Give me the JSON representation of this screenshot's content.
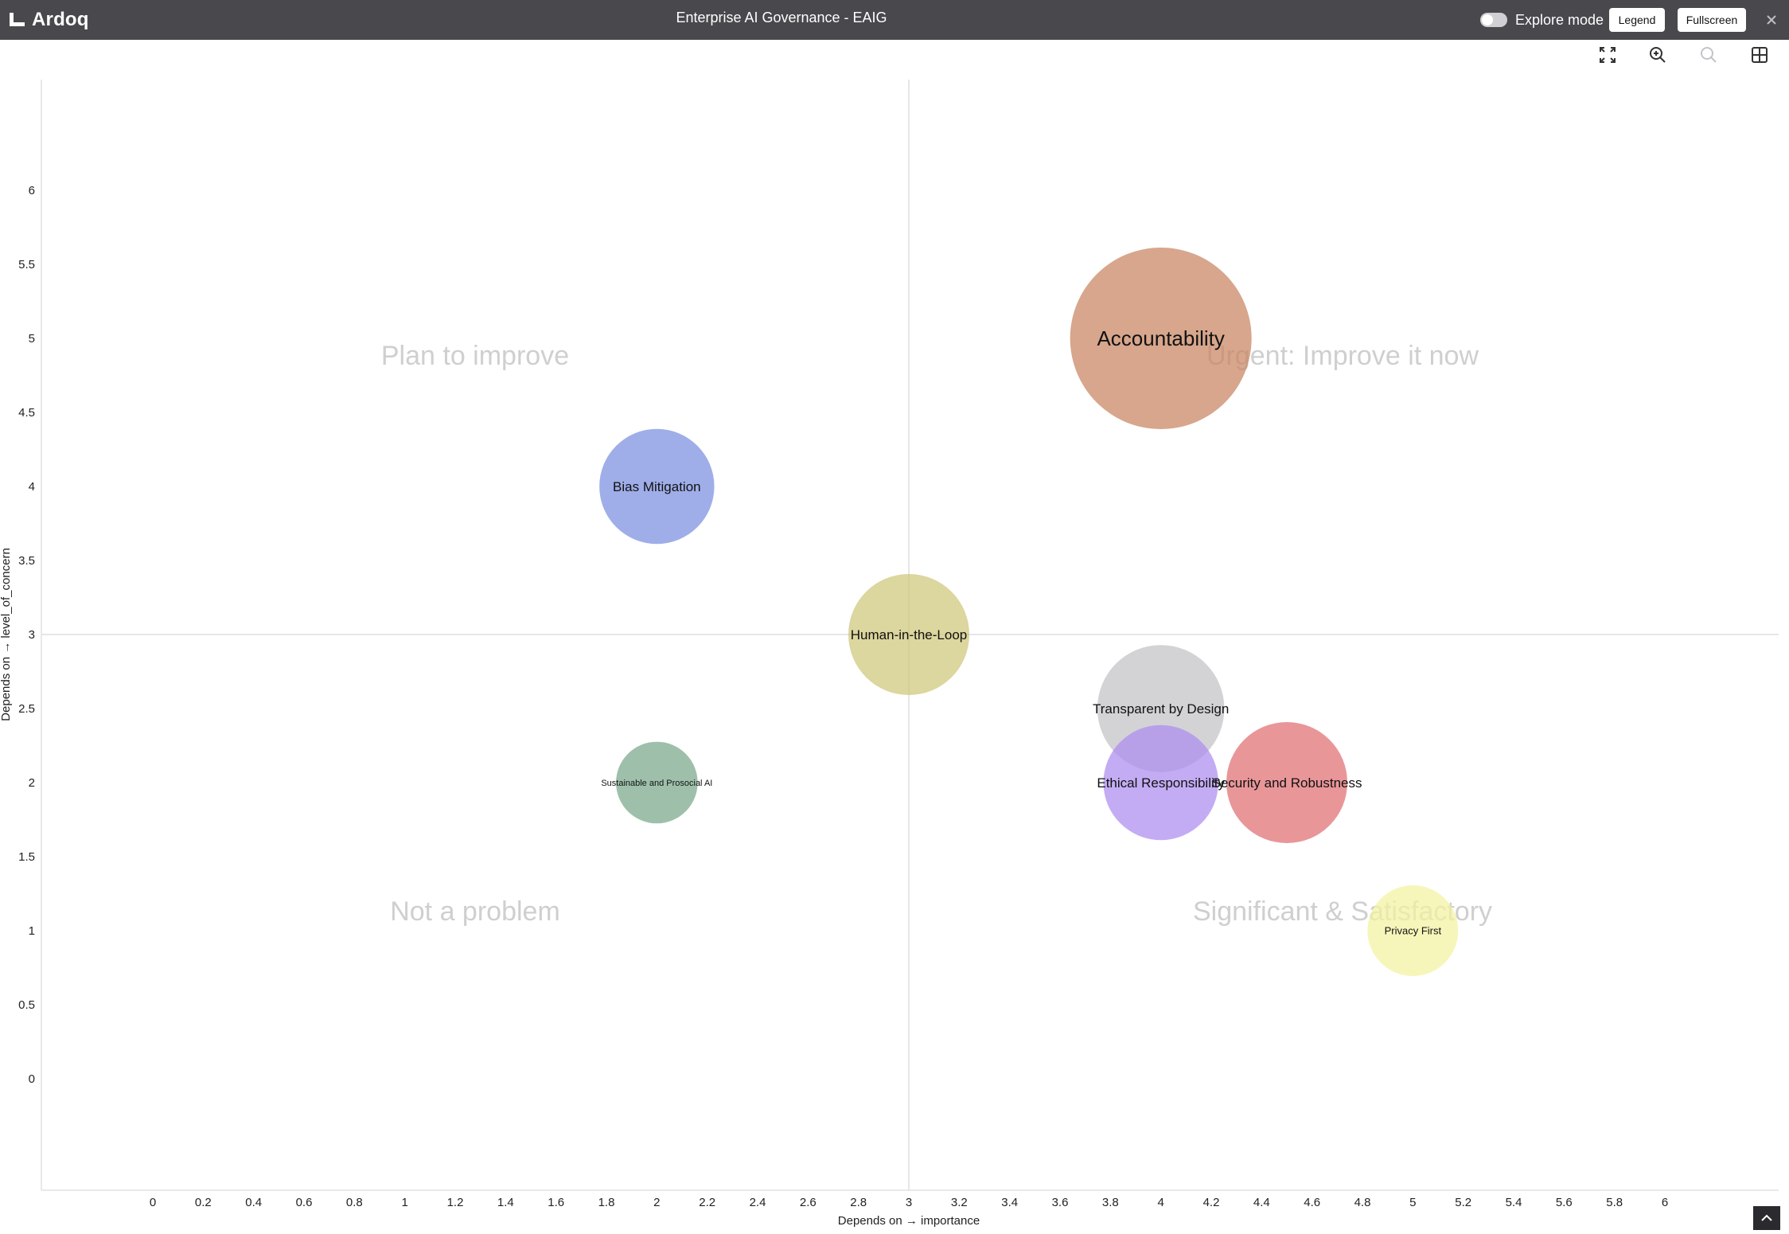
{
  "app": {
    "logo_text": "Ardoq",
    "title": "Enterprise AI Governance - EAIG"
  },
  "toolbar": {
    "explore_mode_label": "Explore mode",
    "explore_mode_on": false,
    "legend_label": "Legend",
    "fullscreen_label": "Fullscreen"
  },
  "view_tools": [
    "fit-view-icon",
    "zoom-in-icon",
    "zoom-out-icon",
    "grid-icon"
  ],
  "chart_data": {
    "type": "scatter",
    "variant": "bubble",
    "xlabel": "Depends on → importance",
    "ylabel": "Depends on → level_of_concern",
    "xlim": [
      0,
      6
    ],
    "ylim": [
      0,
      6
    ],
    "x_ticks": [
      "0",
      "0.2",
      "0.4",
      "0.6",
      "0.8",
      "1",
      "1.2",
      "1.4",
      "1.6",
      "1.8",
      "2",
      "2.2",
      "2.4",
      "2.6",
      "2.8",
      "3",
      "3.2",
      "3.4",
      "3.6",
      "3.8",
      "4",
      "4.2",
      "4.4",
      "4.6",
      "4.8",
      "5",
      "5.2",
      "5.4",
      "5.6",
      "5.8",
      "6"
    ],
    "y_ticks": [
      "0",
      "0.5",
      "1",
      "1.5",
      "2",
      "2.5",
      "3",
      "3.5",
      "4",
      "4.5",
      "5",
      "5.5",
      "6"
    ],
    "divider": {
      "x": 3,
      "y": 3
    },
    "quadrant_labels": {
      "top_left": "Plan to improve",
      "top_right": "Urgent: Improve it now",
      "bottom_left": "Not a problem",
      "bottom_right": "Significant & Satisfactory"
    },
    "bubbles": [
      {
        "label": "Accountability",
        "x": 4,
        "y": 5,
        "size": 3,
        "color": "#c8835f"
      },
      {
        "label": "Bias Mitigation",
        "x": 2,
        "y": 4,
        "size": 1.9,
        "color": "#7a8fdf"
      },
      {
        "label": "Human-in-the-Loop",
        "x": 3,
        "y": 3,
        "size": 2,
        "color": "#cfc67a"
      },
      {
        "label": "Transparent by Design",
        "x": 4,
        "y": 2.5,
        "size": 2.1,
        "color": "#c2c2c6"
      },
      {
        "label": "Sustainable and Prosocial AI",
        "x": 2,
        "y": 2,
        "size": 1.35,
        "color": "#79a88a"
      },
      {
        "label": "Ethical Responsibility",
        "x": 4,
        "y": 2,
        "size": 1.9,
        "color": "#ad8cf0"
      },
      {
        "label": "Security and Robustness",
        "x": 4.5,
        "y": 2,
        "size": 2,
        "color": "#e06e72"
      },
      {
        "label": "Privacy First",
        "x": 5,
        "y": 1,
        "size": 1.5,
        "color": "#f3f2a0"
      }
    ]
  }
}
